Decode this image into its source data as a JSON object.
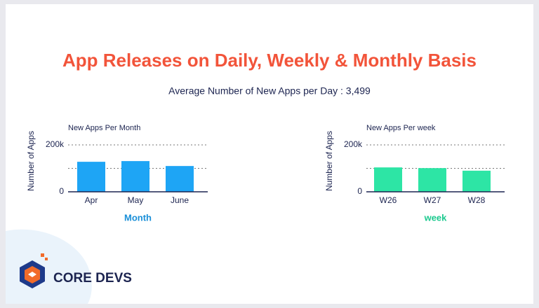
{
  "header": {
    "title": "App Releases on Daily, Weekly & Monthly Basis",
    "subtitle": "Average Number of New Apps per Day : 3,499"
  },
  "logo": {
    "text": "CORE DEVS"
  },
  "chart_data": [
    {
      "type": "bar",
      "title": "New Apps Per Month",
      "y_label": "Number of Apps",
      "x_label": "Month",
      "x_label_color": "#1a8fd8",
      "categories": [
        "Apr",
        "May",
        "June"
      ],
      "values": [
        128000,
        131000,
        110000
      ],
      "color": "#1ea5f5",
      "ylim": [
        0,
        200000
      ],
      "yticks": [
        0,
        {
          "value": 100000,
          "label": null
        },
        {
          "value": 200000,
          "label": "200k"
        }
      ],
      "grid": true
    },
    {
      "type": "bar",
      "title": "New Apps Per week",
      "y_label": "Number of Apps",
      "x_label": "week",
      "x_label_color": "#1bc98e",
      "categories": [
        "W26",
        "W27",
        "W28"
      ],
      "values": [
        104000,
        101000,
        90000
      ],
      "color": "#2de5a5",
      "ylim": [
        0,
        200000
      ],
      "yticks": [
        0,
        {
          "value": 100000,
          "label": null
        },
        {
          "value": 200000,
          "label": "200k"
        }
      ],
      "grid": true
    }
  ]
}
